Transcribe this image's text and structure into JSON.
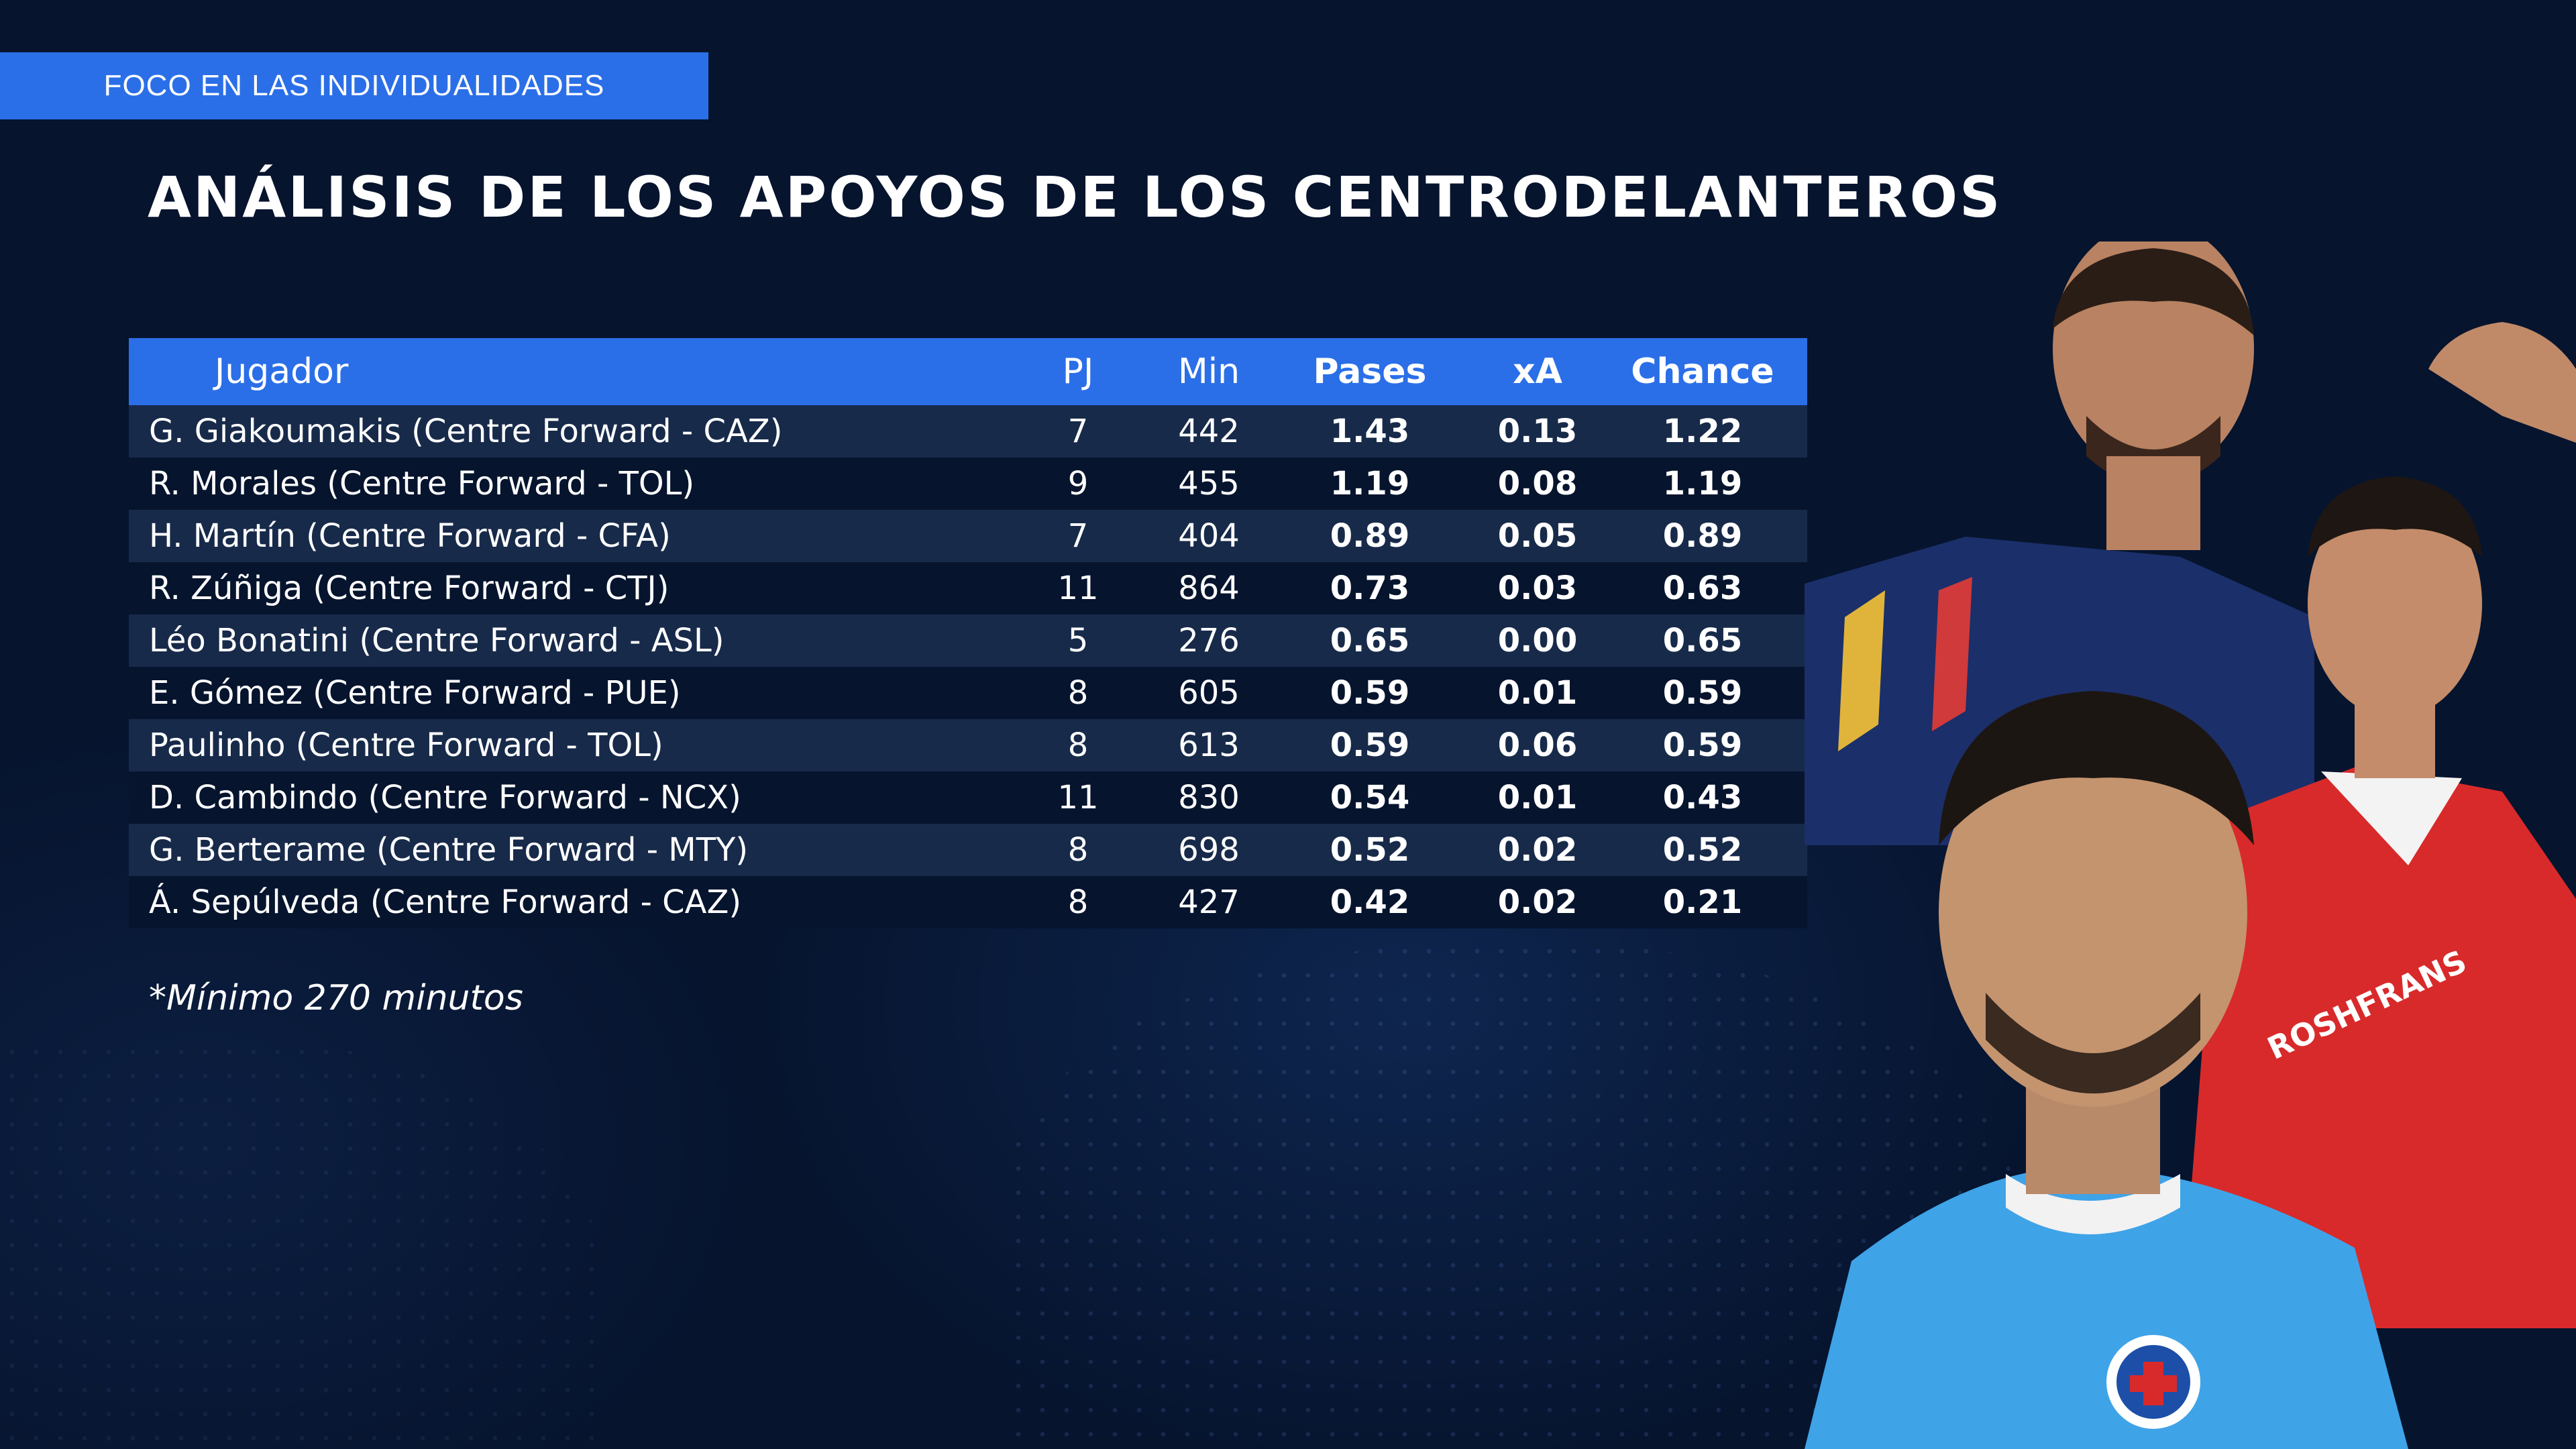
{
  "header": {
    "tag": "FOCO EN LAS INDIVIDUALIDADES",
    "title": "ANÁLISIS DE LOS APOYOS DE LOS CENTRODELANTEROS"
  },
  "table": {
    "columns": {
      "player": "Jugador",
      "pj": "PJ",
      "min": "Min",
      "pases": "Pases",
      "xa": "xA",
      "chance": "Chance"
    },
    "rows": [
      {
        "player": "G. Giakoumakis (Centre Forward - CAZ)",
        "pj": "7",
        "min": "442",
        "pases": "1.43",
        "xa": "0.13",
        "chance": "1.22"
      },
      {
        "player": "R. Morales (Centre Forward - TOL)",
        "pj": "9",
        "min": "455",
        "pases": "1.19",
        "xa": "0.08",
        "chance": "1.19"
      },
      {
        "player": "H. Martín (Centre Forward - CFA)",
        "pj": "7",
        "min": "404",
        "pases": "0.89",
        "xa": "0.05",
        "chance": "0.89"
      },
      {
        "player": "R. Zúñiga (Centre Forward - CTJ)",
        "pj": "11",
        "min": "864",
        "pases": "0.73",
        "xa": "0.03",
        "chance": "0.63"
      },
      {
        "player": "Léo Bonatini (Centre Forward - ASL)",
        "pj": "5",
        "min": "276",
        "pases": "0.65",
        "xa": "0.00",
        "chance": "0.65"
      },
      {
        "player": "E. Gómez (Centre Forward - PUE)",
        "pj": "8",
        "min": "605",
        "pases": "0.59",
        "xa": "0.01",
        "chance": "0.59"
      },
      {
        "player": "Paulinho (Centre Forward - TOL)",
        "pj": "8",
        "min": "613",
        "pases": "0.59",
        "xa": "0.06",
        "chance": "0.59"
      },
      {
        "player": "D. Cambindo (Centre Forward - NCX)",
        "pj": "11",
        "min": "830",
        "pases": "0.54",
        "xa": "0.01",
        "chance": "0.43"
      },
      {
        "player": "G. Berterame (Centre Forward - MTY)",
        "pj": "8",
        "min": "698",
        "pases": "0.52",
        "xa": "0.02",
        "chance": "0.52"
      },
      {
        "player": "Á. Sepúlveda (Centre Forward - CAZ)",
        "pj": "8",
        "min": "427",
        "pases": "0.42",
        "xa": "0.02",
        "chance": "0.21"
      }
    ]
  },
  "footnote": "*Mínimo 270 minutos",
  "colors": {
    "background": "#06142e",
    "accent": "#2b6fe8",
    "row_alt": "#172a4a"
  },
  "crest_text": "ROSHFRANS"
}
